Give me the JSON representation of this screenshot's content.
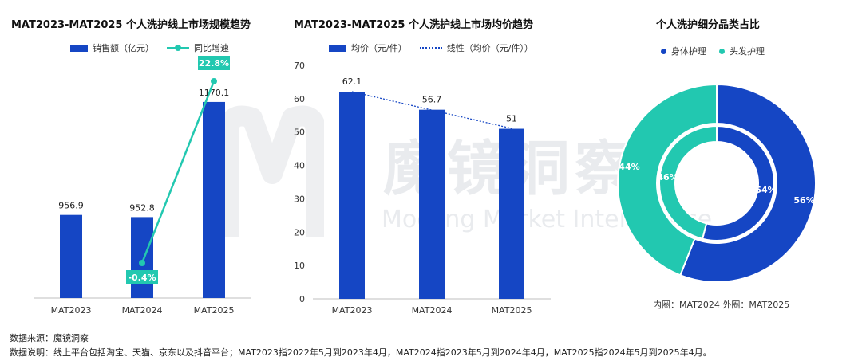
{
  "colors": {
    "bar": "#1546c4",
    "line": "#22c8b0",
    "label_bg": "#22c8b0",
    "axis": "#bfbfbf"
  },
  "chart_data": [
    {
      "type": "bar",
      "title": "MAT2023-MAT2025 个人洗护线上市场规模趋势",
      "categories": [
        "MAT2023",
        "MAT2024",
        "MAT2025"
      ],
      "series": [
        {
          "name": "销售额（亿元）",
          "values": [
            956.9,
            952.8,
            1170.1
          ],
          "labels": [
            "956.9",
            "952.8",
            "1170.1"
          ]
        },
        {
          "name": "同比增速",
          "type": "line",
          "values": [
            null,
            -0.4,
            22.8
          ],
          "labels": [
            "",
            "-0.4%",
            "22.8%"
          ]
        }
      ],
      "legend": "top"
    },
    {
      "type": "bar",
      "title": "MAT2023-MAT2025 个人洗护线上市场均价趋势",
      "categories": [
        "MAT2023",
        "MAT2024",
        "MAT2025"
      ],
      "ylim": [
        0,
        70
      ],
      "yticks": [
        "0",
        "10",
        "20",
        "30",
        "40",
        "50",
        "60",
        "70"
      ],
      "series": [
        {
          "name": "均价（元/件）",
          "values": [
            62.1,
            56.7,
            51
          ],
          "labels": [
            "62.1",
            "56.7",
            "51"
          ]
        },
        {
          "name": "线性（均价（元/件））",
          "type": "line",
          "values": [
            62.1,
            56.6,
            51.1
          ]
        }
      ],
      "legend": "top"
    },
    {
      "type": "pie",
      "title": "个人洗护细分品类占比",
      "categories": [
        "身体护理",
        "头发护理"
      ],
      "series": [
        {
          "name": "MAT2024",
          "values": [
            54,
            46
          ],
          "labels": [
            "54%",
            "46%"
          ]
        },
        {
          "name": "MAT2025",
          "values": [
            56,
            44
          ],
          "labels": [
            "56%",
            "44%"
          ]
        }
      ],
      "colors": [
        "#1546c4",
        "#22c8b0"
      ],
      "note": "内圈：MAT2024 外圈：MAT2025",
      "legend": "top"
    }
  ],
  "watermark": {
    "cn": "魔镜洞察",
    "en": "Moojing Market Intelligence"
  },
  "footer": {
    "source": "数据来源：魔镜洞察",
    "note": "数据说明：线上平台包括淘宝、天猫、京东以及抖音平台；MAT2023指2022年5月到2023年4月，MAT2024指2023年5月到2024年4月，MAT2025指2024年5月到2025年4月。"
  }
}
